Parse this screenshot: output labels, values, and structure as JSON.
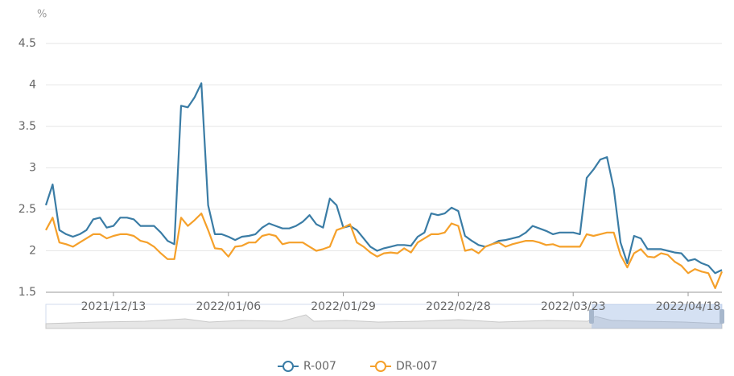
{
  "chart_data": {
    "type": "line",
    "y_axis_label": "%",
    "categories": [
      null,
      null,
      null,
      null,
      null,
      null,
      null,
      null,
      null,
      null,
      "2021/12/13",
      null,
      null,
      null,
      null,
      null,
      null,
      null,
      null,
      null,
      null,
      null,
      null,
      null,
      null,
      null,
      null,
      "2022/01/06",
      null,
      null,
      null,
      null,
      null,
      null,
      null,
      null,
      null,
      null,
      null,
      null,
      null,
      null,
      null,
      null,
      "2022/01/29",
      null,
      null,
      null,
      null,
      null,
      null,
      null,
      null,
      null,
      null,
      null,
      null,
      null,
      null,
      null,
      null,
      "2022/02/28",
      null,
      null,
      null,
      null,
      null,
      null,
      null,
      null,
      null,
      null,
      null,
      null,
      null,
      null,
      null,
      null,
      "2022/03/23",
      null,
      null,
      null,
      null,
      null,
      null,
      null,
      null,
      null,
      null,
      null,
      null,
      null,
      null,
      null,
      null,
      "2022/04/18",
      null,
      null,
      null,
      null,
      null
    ],
    "series": [
      {
        "name": "R-007",
        "color": "#3a7ca5",
        "values": [
          2.55,
          2.8,
          2.25,
          2.2,
          2.17,
          2.2,
          2.25,
          2.38,
          2.4,
          2.28,
          2.3,
          2.4,
          2.4,
          2.38,
          2.3,
          2.3,
          2.3,
          2.22,
          2.12,
          2.08,
          3.75,
          3.73,
          3.85,
          4.02,
          2.55,
          2.2,
          2.2,
          2.17,
          2.13,
          2.17,
          2.18,
          2.2,
          2.28,
          2.33,
          2.3,
          2.27,
          2.27,
          2.3,
          2.35,
          2.43,
          2.32,
          2.28,
          2.63,
          2.55,
          2.28,
          2.3,
          2.25,
          2.15,
          2.05,
          2.0,
          2.03,
          2.05,
          2.07,
          2.07,
          2.06,
          2.17,
          2.22,
          2.45,
          2.43,
          2.45,
          2.52,
          2.48,
          2.18,
          2.12,
          2.07,
          2.05,
          2.08,
          2.12,
          2.13,
          2.15,
          2.17,
          2.22,
          2.3,
          2.27,
          2.24,
          2.2,
          2.22,
          2.22,
          2.22,
          2.2,
          2.88,
          2.98,
          3.1,
          3.13,
          2.75,
          2.1,
          1.85,
          2.18,
          2.15,
          2.02,
          2.02,
          2.02,
          2.0,
          1.98,
          1.97,
          1.88,
          1.9,
          1.85,
          1.82,
          1.73,
          1.77
        ]
      },
      {
        "name": "DR-007",
        "color": "#f5a02a",
        "values": [
          2.25,
          2.4,
          2.1,
          2.08,
          2.05,
          2.1,
          2.15,
          2.2,
          2.2,
          2.15,
          2.18,
          2.2,
          2.2,
          2.18,
          2.12,
          2.1,
          2.05,
          1.97,
          1.9,
          1.9,
          2.4,
          2.3,
          2.37,
          2.45,
          2.25,
          2.03,
          2.02,
          1.93,
          2.05,
          2.06,
          2.1,
          2.1,
          2.18,
          2.2,
          2.18,
          2.08,
          2.1,
          2.1,
          2.1,
          2.05,
          2.0,
          2.02,
          2.05,
          2.25,
          2.28,
          2.32,
          2.1,
          2.05,
          1.98,
          1.93,
          1.97,
          1.98,
          1.97,
          2.03,
          1.98,
          2.1,
          2.15,
          2.2,
          2.2,
          2.22,
          2.33,
          2.3,
          2.0,
          2.02,
          1.97,
          2.05,
          2.08,
          2.1,
          2.05,
          2.08,
          2.1,
          2.12,
          2.12,
          2.1,
          2.07,
          2.08,
          2.05,
          2.05,
          2.05,
          2.05,
          2.2,
          2.18,
          2.2,
          2.22,
          2.22,
          1.95,
          1.8,
          1.97,
          2.02,
          1.93,
          1.92,
          1.97,
          1.95,
          1.87,
          1.82,
          1.73,
          1.78,
          1.75,
          1.73,
          1.55,
          1.75
        ]
      }
    ],
    "ylim": [
      1.5,
      4.5
    ],
    "yticks": [
      1.5,
      2,
      2.5,
      3,
      3.5,
      4,
      4.5
    ],
    "grid": true,
    "legend": "bottom"
  }
}
